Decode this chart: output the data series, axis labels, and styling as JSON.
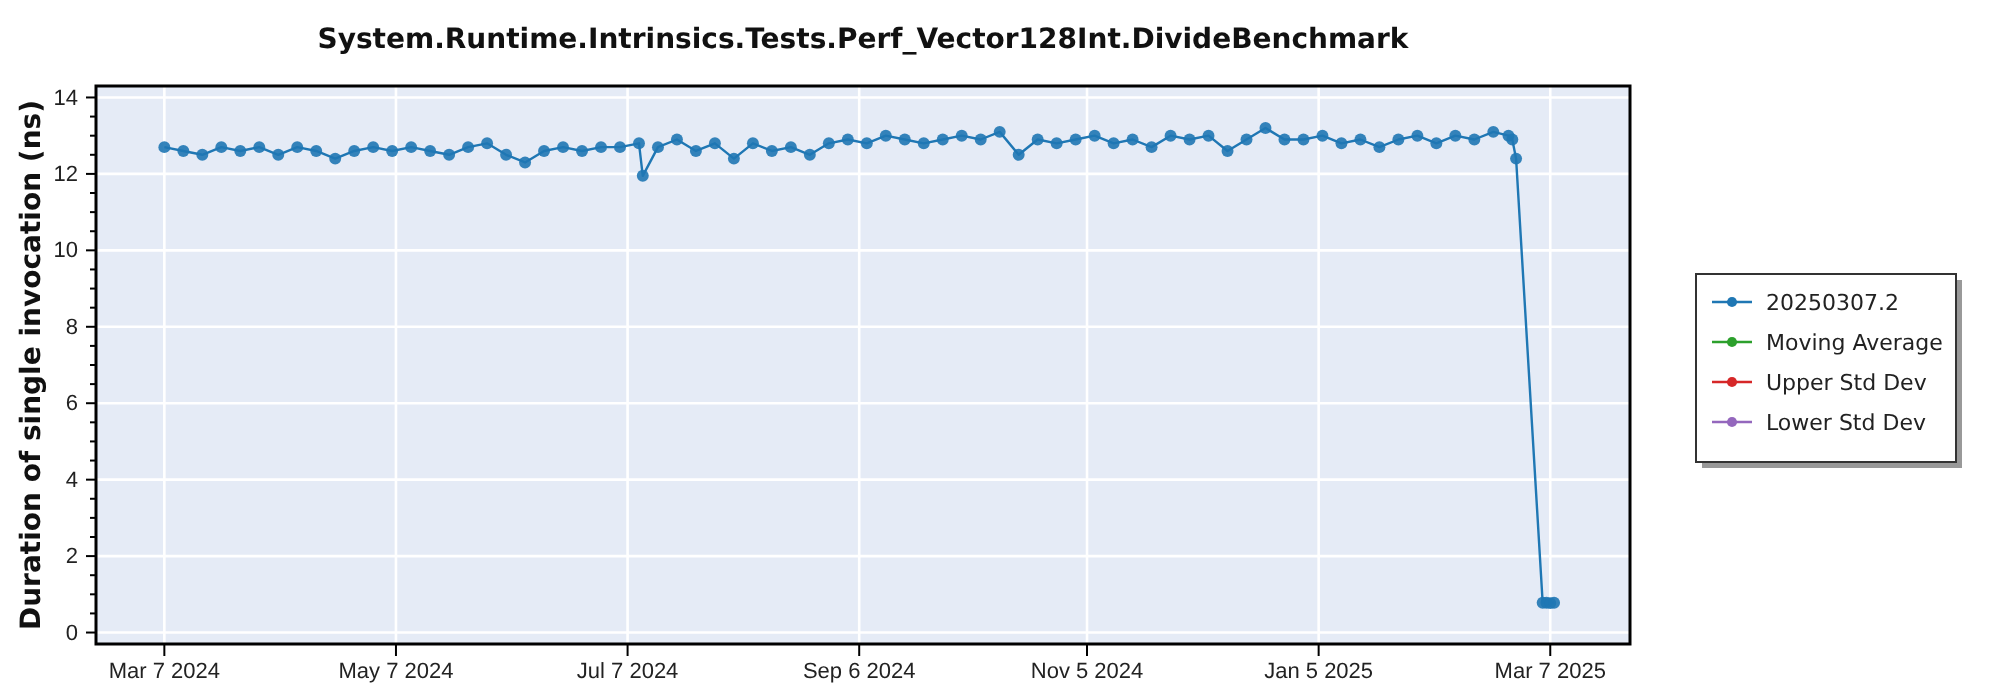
{
  "chart_data": {
    "type": "line",
    "title": "System.Runtime.Intrinsics.Tests.Perf_Vector128Int.DivideBenchmark",
    "ylabel": "Duration of single invocation (ns)",
    "xlim": [
      "2024-02-18",
      "2025-03-28"
    ],
    "ylim": [
      -0.3,
      14.3
    ],
    "xticks": [
      {
        "value": "2024-03-07",
        "label": "Mar 7 2024"
      },
      {
        "value": "2024-05-07",
        "label": "May 7 2024"
      },
      {
        "value": "2024-07-07",
        "label": "Jul 7 2024"
      },
      {
        "value": "2024-09-06",
        "label": "Sep 6 2024"
      },
      {
        "value": "2024-11-05",
        "label": "Nov 5 2024"
      },
      {
        "value": "2025-01-05",
        "label": "Jan 5 2025"
      },
      {
        "value": "2025-03-07",
        "label": "Mar 7 2025"
      }
    ],
    "yticks": [
      0,
      {
        "value": 0.5,
        "label": null
      },
      {
        "value": 1,
        "label": null
      },
      {
        "value": 1.5,
        "label": null
      },
      2,
      {
        "value": 2.5,
        "label": null
      },
      {
        "value": 3,
        "label": null
      },
      {
        "value": 3.5,
        "label": null
      },
      4,
      {
        "value": 4.5,
        "label": null
      },
      {
        "value": 5,
        "label": null
      },
      {
        "value": 5.5,
        "label": null
      },
      6,
      {
        "value": 6.5,
        "label": null
      },
      {
        "value": 7,
        "label": null
      },
      {
        "value": 7.5,
        "label": null
      },
      8,
      {
        "value": 8.5,
        "label": null
      },
      {
        "value": 9,
        "label": null
      },
      {
        "value": 9.5,
        "label": null
      },
      10,
      {
        "value": 10.5,
        "label": null
      },
      {
        "value": 11,
        "label": null
      },
      {
        "value": 11.5,
        "label": null
      },
      12,
      {
        "value": 12.5,
        "label": null
      },
      {
        "value": 13,
        "label": null
      },
      {
        "value": 13.5,
        "label": null
      },
      14
    ],
    "grid": true,
    "legend": "right",
    "marker": "circle",
    "line_style": "solid",
    "series": [
      {
        "name": "20250307.2",
        "color": "#1f77b4",
        "x": [
          "2024-03-07",
          "2024-03-12",
          "2024-03-17",
          "2024-03-22",
          "2024-03-27",
          "2024-04-01",
          "2024-04-06",
          "2024-04-11",
          "2024-04-16",
          "2024-04-21",
          "2024-04-26",
          "2024-05-01",
          "2024-05-06",
          "2024-05-11",
          "2024-05-16",
          "2024-05-21",
          "2024-05-26",
          "2024-05-31",
          "2024-06-05",
          "2024-06-10",
          "2024-06-15",
          "2024-06-20",
          "2024-06-25",
          "2024-06-30",
          "2024-07-05",
          "2024-07-10",
          "2024-07-11",
          "2024-07-15",
          "2024-07-20",
          "2024-07-25",
          "2024-07-30",
          "2024-08-04",
          "2024-08-09",
          "2024-08-14",
          "2024-08-19",
          "2024-08-24",
          "2024-08-29",
          "2024-09-03",
          "2024-09-08",
          "2024-09-13",
          "2024-09-18",
          "2024-09-23",
          "2024-09-28",
          "2024-10-03",
          "2024-10-08",
          "2024-10-13",
          "2024-10-18",
          "2024-10-23",
          "2024-10-28",
          "2024-11-02",
          "2024-11-07",
          "2024-11-12",
          "2024-11-17",
          "2024-11-22",
          "2024-11-27",
          "2024-12-02",
          "2024-12-07",
          "2024-12-12",
          "2024-12-17",
          "2024-12-22",
          "2024-12-27",
          "2025-01-01",
          "2025-01-06",
          "2025-01-11",
          "2025-01-16",
          "2025-01-21",
          "2025-01-26",
          "2025-01-31",
          "2025-02-05",
          "2025-02-10",
          "2025-02-15",
          "2025-02-20",
          "2025-02-24",
          "2025-02-25",
          "2025-02-26",
          "2025-03-05",
          "2025-03-06",
          "2025-03-07",
          "2025-03-08"
        ],
        "values": [
          12.7,
          12.6,
          12.5,
          12.7,
          12.6,
          12.7,
          12.5,
          12.7,
          12.6,
          12.4,
          12.6,
          12.7,
          12.6,
          12.7,
          12.6,
          12.5,
          12.7,
          12.8,
          12.5,
          12.3,
          12.6,
          12.7,
          12.6,
          12.7,
          12.7,
          12.8,
          11.95,
          12.7,
          12.9,
          12.6,
          12.8,
          12.4,
          12.8,
          12.6,
          12.7,
          12.5,
          12.8,
          12.9,
          12.8,
          13.0,
          12.9,
          12.8,
          12.9,
          13.0,
          12.9,
          13.1,
          12.5,
          12.9,
          12.8,
          12.9,
          13.0,
          12.8,
          12.9,
          12.7,
          13.0,
          12.9,
          13.0,
          12.6,
          12.9,
          13.2,
          12.9,
          12.9,
          13.0,
          12.8,
          12.9,
          12.7,
          12.9,
          13.0,
          12.8,
          13.0,
          12.9,
          13.1,
          13.0,
          12.9,
          12.4,
          0.78,
          0.78,
          0.77,
          0.78
        ]
      },
      {
        "name": "Moving Average",
        "color": "#2ca02c"
      },
      {
        "name": "Upper Std Dev",
        "color": "#d62728"
      },
      {
        "name": "Lower Std Dev",
        "color": "#9467bd"
      }
    ]
  }
}
